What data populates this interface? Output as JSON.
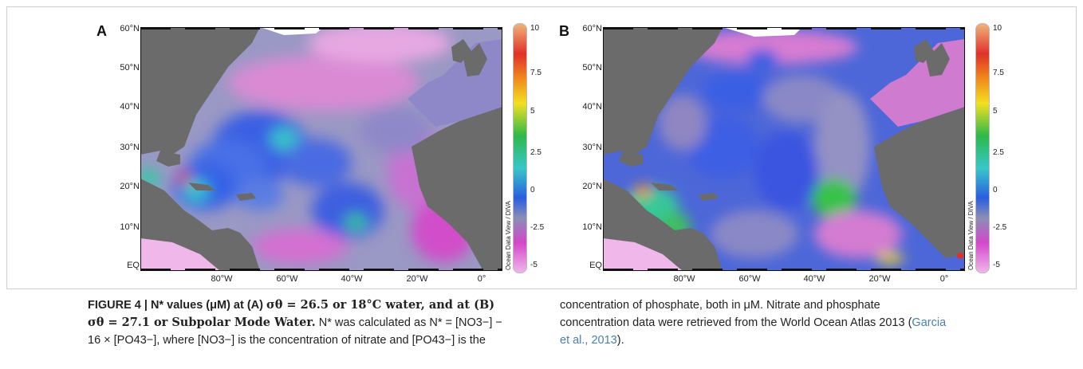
{
  "panels": [
    {
      "letter": "A",
      "y_labels": [
        "60°N",
        "50°N",
        "40°N",
        "30°N",
        "20°N",
        "10°N",
        "EQ"
      ],
      "x_labels": [
        "80°W",
        "60°W",
        "40°W",
        "20°W",
        "0°"
      ],
      "colorbar_ticks": [
        "10",
        "7.5",
        "5",
        "2.5",
        "0",
        "-2.5",
        "-5"
      ],
      "credit": "Ocean Data View / DIVA"
    },
    {
      "letter": "B",
      "y_labels": [
        "60°N",
        "50°N",
        "40°N",
        "30°N",
        "20°N",
        "10°N",
        "EQ"
      ],
      "x_labels": [
        "80°W",
        "60°W",
        "40°W",
        "20°W",
        "0°"
      ],
      "colorbar_ticks": [
        "10",
        "7.5",
        "5",
        "2.5",
        "0",
        "-2.5",
        "-5"
      ],
      "credit": "Ocean Data View / DIVA"
    }
  ],
  "colors": {
    "land": "#6b6b6b",
    "colorbar": [
      "#f2b27a",
      "#e0302a",
      "#f08a1c",
      "#f2e020",
      "#2db84a",
      "#38c7c9",
      "#2a5de0",
      "#8a8fb5",
      "#d247c9",
      "#efb7ea"
    ]
  },
  "caption": {
    "title_1": "FIGURE 4 | N* values (μM) at (A) ",
    "sigma_a": "σθ = 26.5 or 18°C water, and at (B)",
    "sigma_b": "σθ = 27.1 or Subpolar Mode Water.",
    "body_1": " N* was calculated as N* = [NO3−] −",
    "body_2": "16 × [PO43−], where [NO3−] is the concentration of nitrate and [PO43−] is the",
    "right_1": "concentration of phosphate, both in μM. Nitrate and phosphate",
    "right_2": "concentration data were retrieved from the World Ocean Atlas 2013 (",
    "ref_1": "Garcia",
    "ref_2": "et al., 2013",
    "right_end": ")."
  }
}
